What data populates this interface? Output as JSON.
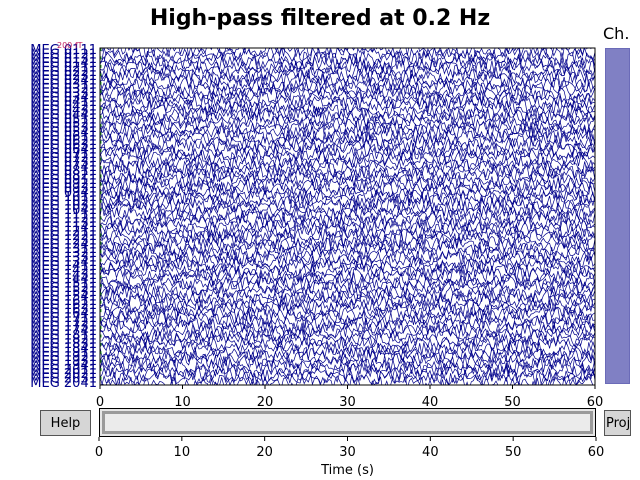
{
  "window": {
    "title": "High-pass filtered at 0.2 Hz",
    "channel_panel_title": "Ch."
  },
  "buttons": {
    "help_label": "Help",
    "proj_label": "Proj"
  },
  "scrollbar": {
    "xlabel": "Time (s)",
    "xlim": [
      0,
      60
    ],
    "ticks": [
      0,
      10,
      20,
      30,
      40,
      50,
      60
    ]
  },
  "chart_data": {
    "type": "line",
    "title": "High-pass filtered at 0.2 Hz",
    "xlim": [
      0,
      60
    ],
    "x_ticks": [
      0,
      10,
      20,
      30,
      40,
      50,
      60
    ],
    "scale_label": "200 fT",
    "channels": [
      "MEG 0111",
      "MEG 0121",
      "MEG 0131",
      "MEG 0141",
      "MEG 0211",
      "MEG 0221",
      "MEG 0231",
      "MEG 0241",
      "MEG 0311",
      "MEG 0321",
      "MEG 0331",
      "MEG 0341",
      "MEG 0411",
      "MEG 0421",
      "MEG 0431",
      "MEG 0441",
      "MEG 0511",
      "MEG 0521",
      "MEG 0531",
      "MEG 0541",
      "MEG 0611",
      "MEG 0621",
      "MEG 0631",
      "MEG 0641",
      "MEG 0711",
      "MEG 0721",
      "MEG 0731",
      "MEG 0741",
      "MEG 0811",
      "MEG 0821",
      "MEG 0911",
      "MEG 0921",
      "MEG 0931",
      "MEG 0941",
      "MEG 1011",
      "MEG 1021",
      "MEG 1031",
      "MEG 1041",
      "MEG 1111",
      "MEG 1121",
      "MEG 1131",
      "MEG 1141",
      "MEG 1211",
      "MEG 1221",
      "MEG 1231",
      "MEG 1241",
      "MEG 1311",
      "MEG 1321",
      "MEG 1331",
      "MEG 1341",
      "MEG 1411",
      "MEG 1421",
      "MEG 1431",
      "MEG 1441",
      "MEG 1511",
      "MEG 1521",
      "MEG 1531",
      "MEG 1541",
      "MEG 1611",
      "MEG 1621",
      "MEG 1631",
      "MEG 1641",
      "MEG 1711",
      "MEG 1721",
      "MEG 1731",
      "MEG 1741",
      "MEG 1811",
      "MEG 1821",
      "MEG 1831",
      "MEG 1841",
      "MEG 1911",
      "MEG 1921",
      "MEG 1931",
      "MEG 1941",
      "MEG 2011",
      "MEG 2021",
      "MEG 2031",
      "MEG 2041"
    ],
    "trace_color": "#00008b",
    "label_color": "#00008b",
    "background": "#ffffff"
  }
}
